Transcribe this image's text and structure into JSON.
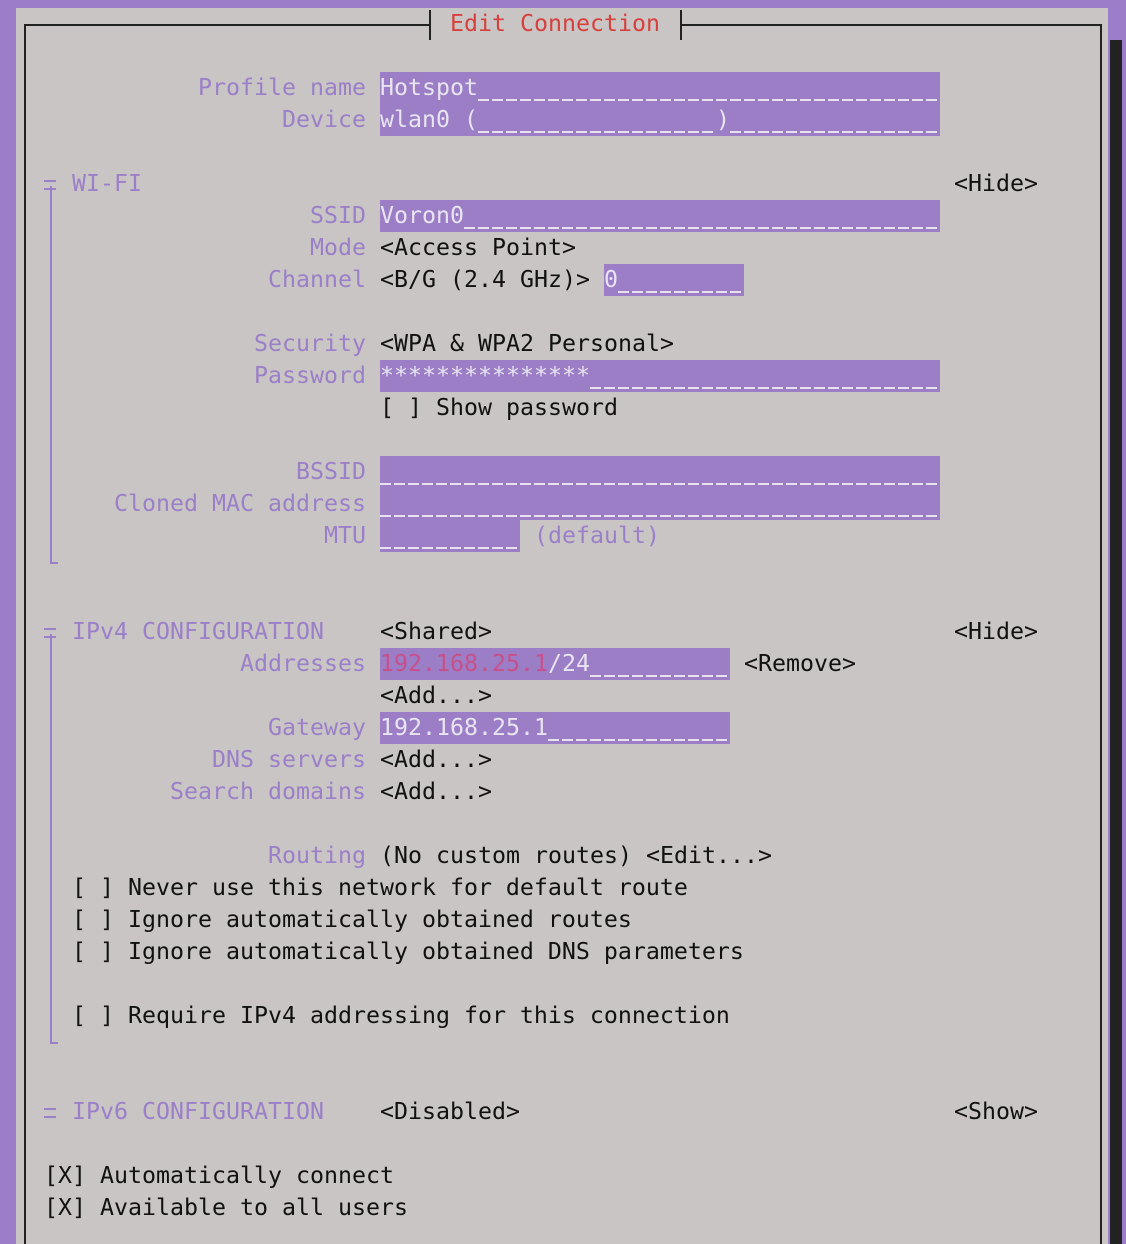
{
  "title": "Edit Connection",
  "general": {
    "profile_name": {
      "label": "Profile name",
      "value": "Hotspot"
    },
    "device": {
      "label": "Device",
      "value": "wlan0 (",
      "value_end": ")"
    }
  },
  "wifi": {
    "heading": "WI-FI",
    "toggle": "<Hide>",
    "ssid": {
      "label": "SSID",
      "value": "Voron0"
    },
    "mode": {
      "label": "Mode",
      "value": "<Access Point>"
    },
    "channel": {
      "label": "Channel",
      "band": "<B/G (2.4 GHz)>",
      "value": "0"
    },
    "security": {
      "label": "Security",
      "value": "<WPA & WPA2 Personal>"
    },
    "password": {
      "label": "Password",
      "value": "***************"
    },
    "show_password": {
      "checkbox": "[ ]",
      "label": "Show password"
    },
    "bssid": {
      "label": "BSSID"
    },
    "cloned_mac": {
      "label": "Cloned MAC address"
    },
    "mtu": {
      "label": "MTU",
      "hint": "(default)"
    }
  },
  "ipv4": {
    "heading": "IPv4 CONFIGURATION",
    "method": "<Shared>",
    "toggle": "<Hide>",
    "addresses": {
      "label": "Addresses",
      "ip": "192.168.25.1",
      "prefix": "/24",
      "remove": "<Remove>",
      "add": "<Add...>"
    },
    "gateway": {
      "label": "Gateway",
      "value": "192.168.25.1"
    },
    "dns": {
      "label": "DNS servers",
      "add": "<Add...>"
    },
    "search": {
      "label": "Search domains",
      "add": "<Add...>"
    },
    "routing": {
      "label": "Routing",
      "value": "(No custom routes)",
      "edit": "<Edit...>"
    },
    "options": [
      {
        "checkbox": "[ ]",
        "label": "Never use this network for default route"
      },
      {
        "checkbox": "[ ]",
        "label": "Ignore automatically obtained routes"
      },
      {
        "checkbox": "[ ]",
        "label": "Ignore automatically obtained DNS parameters"
      }
    ],
    "require": {
      "checkbox": "[ ]",
      "label": "Require IPv4 addressing for this connection"
    }
  },
  "ipv6": {
    "heading": "IPv6 CONFIGURATION",
    "method": "<Disabled>",
    "toggle": "<Show>"
  },
  "bottom": [
    {
      "checkbox": "[X]",
      "label": "Automatically connect"
    },
    {
      "checkbox": "[X]",
      "label": "Available to all users"
    }
  ]
}
